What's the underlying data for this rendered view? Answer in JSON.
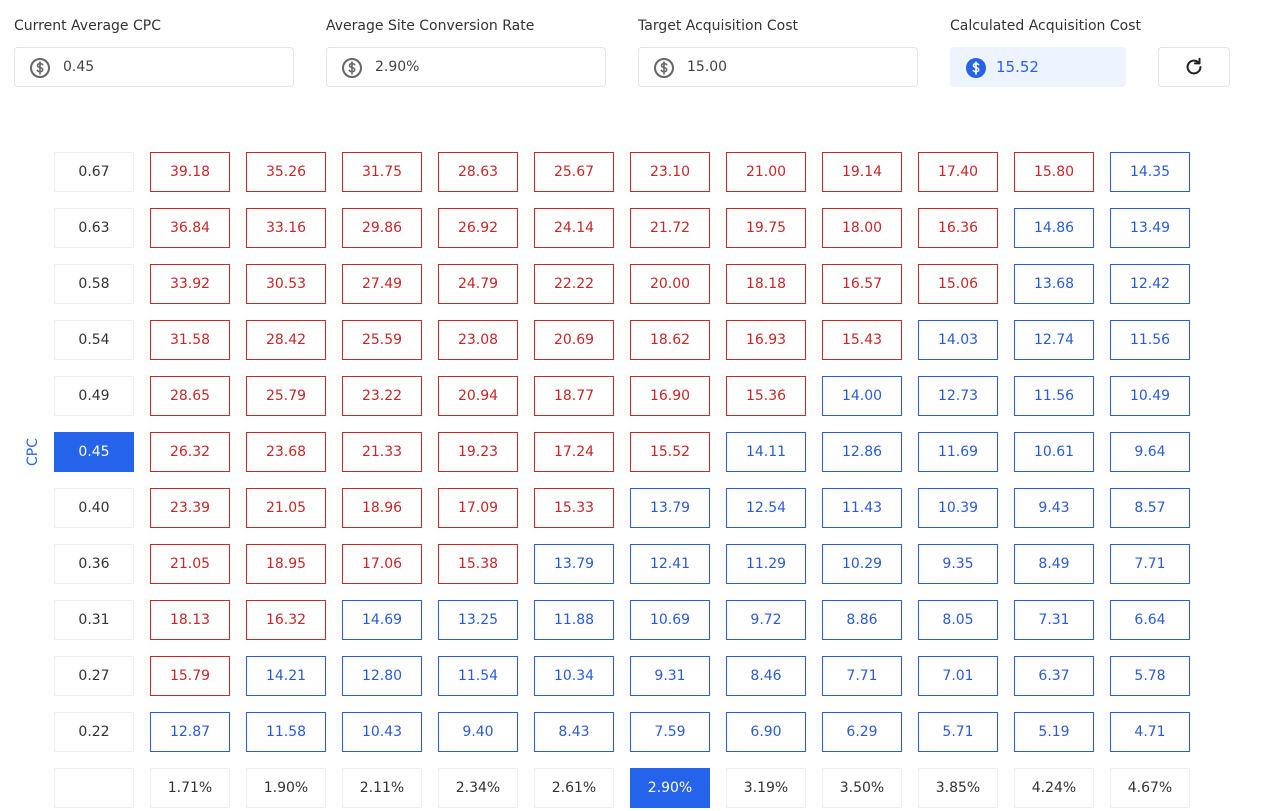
{
  "fields": [
    {
      "label": "Current Average CPC",
      "value": "0.45"
    },
    {
      "label": "Average Site Conversion Rate",
      "value": "2.90%"
    },
    {
      "label": "Target Acquisition Cost",
      "value": "15.00"
    },
    {
      "label": "Calculated Acquisition Cost",
      "value": "15.52"
    }
  ],
  "table": {
    "y_axis_label": "CPC",
    "row_labels": [
      "0.67",
      "0.63",
      "0.58",
      "0.54",
      "0.49",
      "0.45",
      "0.40",
      "0.36",
      "0.31",
      "0.27",
      "0.22"
    ],
    "column_labels": [
      "1.71%",
      "1.90%",
      "2.11%",
      "2.34%",
      "2.61%",
      "2.90%",
      "3.19%",
      "3.50%",
      "3.85%",
      "4.24%",
      "4.67%"
    ],
    "rows": [
      [
        "39.18",
        "35.26",
        "31.75",
        "28.63",
        "25.67",
        "23.10",
        "21.00",
        "19.14",
        "17.40",
        "15.80",
        "14.35"
      ],
      [
        "36.84",
        "33.16",
        "29.86",
        "26.92",
        "24.14",
        "21.72",
        "19.75",
        "18.00",
        "16.36",
        "14.86",
        "13.49"
      ],
      [
        "33.92",
        "30.53",
        "27.49",
        "24.79",
        "22.22",
        "20.00",
        "18.18",
        "16.57",
        "15.06",
        "13.68",
        "12.42"
      ],
      [
        "31.58",
        "28.42",
        "25.59",
        "23.08",
        "20.69",
        "18.62",
        "16.93",
        "15.43",
        "14.03",
        "12.74",
        "11.56"
      ],
      [
        "28.65",
        "25.79",
        "23.22",
        "20.94",
        "18.77",
        "16.90",
        "15.36",
        "14.00",
        "12.73",
        "11.56",
        "10.49"
      ],
      [
        "26.32",
        "23.68",
        "21.33",
        "19.23",
        "17.24",
        "15.52",
        "14.11",
        "12.86",
        "11.69",
        "10.61",
        "9.64"
      ],
      [
        "23.39",
        "21.05",
        "18.96",
        "17.09",
        "15.33",
        "13.79",
        "12.54",
        "11.43",
        "10.39",
        "9.43",
        "8.57"
      ],
      [
        "21.05",
        "18.95",
        "17.06",
        "15.38",
        "13.79",
        "12.41",
        "11.29",
        "10.29",
        "9.35",
        "8.49",
        "7.71"
      ],
      [
        "18.13",
        "16.32",
        "14.69",
        "13.25",
        "11.88",
        "10.69",
        "9.72",
        "8.86",
        "8.05",
        "7.31",
        "6.64"
      ],
      [
        "15.79",
        "14.21",
        "12.80",
        "11.54",
        "10.34",
        "9.31",
        "8.46",
        "7.71",
        "7.01",
        "6.37",
        "5.78"
      ],
      [
        "12.87",
        "11.58",
        "10.43",
        "9.40",
        "8.43",
        "7.59",
        "6.90",
        "6.29",
        "5.71",
        "5.19",
        "4.71"
      ]
    ]
  }
}
